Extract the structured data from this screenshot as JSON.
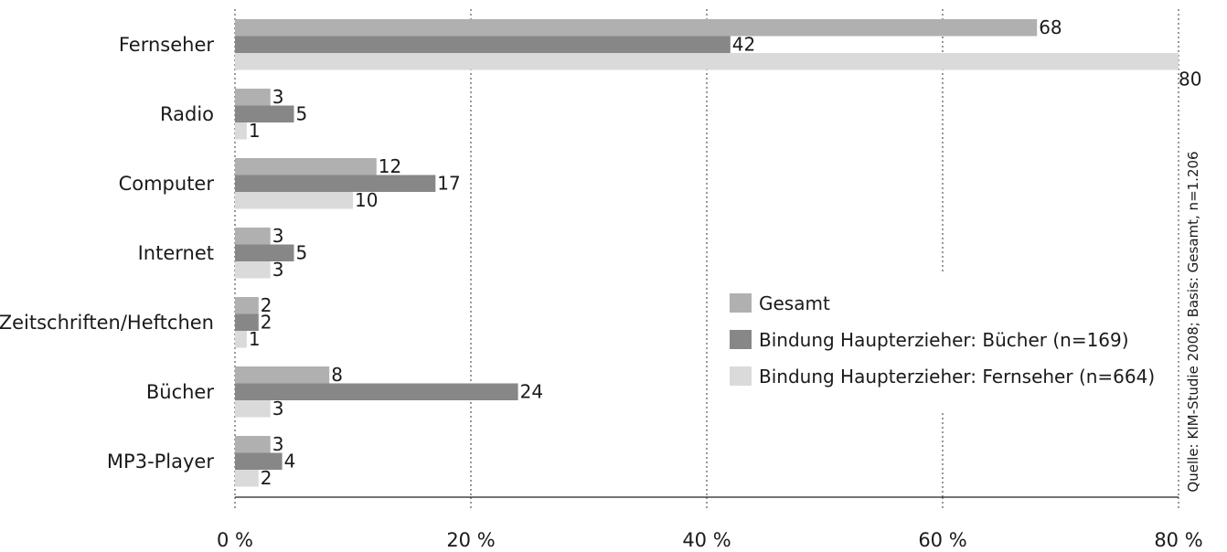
{
  "chart_data": {
    "type": "bar",
    "orientation": "horizontal",
    "categories": [
      "Fernseher",
      "Radio",
      "Computer",
      "Internet",
      "Zeitschriften/Heftchen",
      "Bücher",
      "MP3-Player"
    ],
    "series": [
      {
        "name": "Gesamt",
        "color": "#b0b0b0",
        "values": [
          68,
          3,
          12,
          3,
          2,
          8,
          3
        ]
      },
      {
        "name": "Bindung Haupterzieher: Bücher (n=169)",
        "color": "#878787",
        "values": [
          42,
          5,
          17,
          5,
          2,
          24,
          4
        ]
      },
      {
        "name": "Bindung Haupterzieher: Fernseher (n=664)",
        "color": "#dadada",
        "values": [
          80,
          1,
          10,
          3,
          1,
          3,
          2
        ]
      }
    ],
    "xlim": [
      0,
      80
    ],
    "xticks": [
      0,
      20,
      40,
      60,
      80
    ],
    "tick_labels": [
      "0 %",
      "20 %",
      "40 %",
      "60 %",
      "80 %"
    ],
    "grid": "vertical-dotted",
    "legend_position": "center-right",
    "source_note": "Quelle: KIM-Studie 2008; Basis: Gesamt, n=1.206"
  }
}
